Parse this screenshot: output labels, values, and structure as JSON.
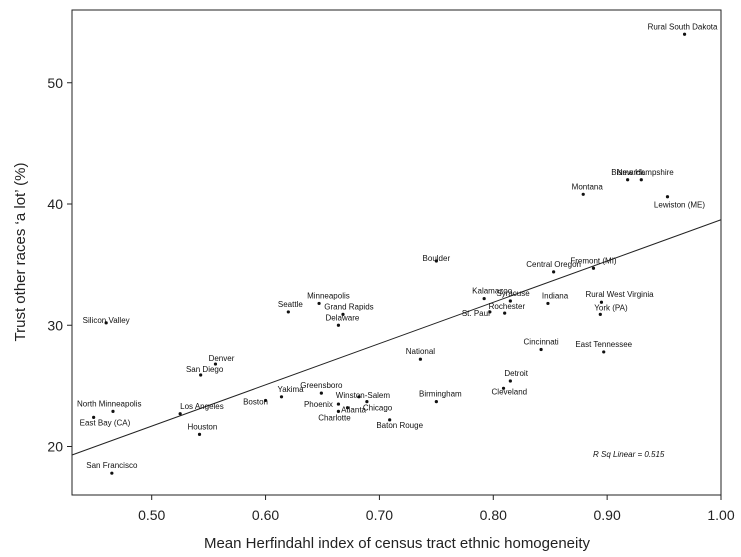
{
  "chart_data": {
    "type": "scatter",
    "xlabel": "Mean Herfindahl index of census tract ethnic homogeneity",
    "ylabel": "Trust other races ‘a lot’ (%)",
    "xlim": [
      0.43,
      1.0
    ],
    "ylim": [
      16.0,
      56.0
    ],
    "x_ticks": [
      "0.50",
      "0.60",
      "0.70",
      "0.80",
      "0.90",
      "1.00"
    ],
    "y_ticks": [
      "20",
      "30",
      "40",
      "50"
    ],
    "fit_line": {
      "x": [
        0.43,
        1.0
      ],
      "y": [
        19.3,
        38.7
      ]
    },
    "annotation": "R Sq Linear = 0.515",
    "points": [
      {
        "label": "Rural South Dakota",
        "x": 0.968,
        "y": 54.0
      },
      {
        "label": "Bismarck",
        "x": 0.918,
        "y": 42.0
      },
      {
        "label": "New Hampshire",
        "x": 0.93,
        "y": 42.0
      },
      {
        "label": "Montana",
        "x": 0.879,
        "y": 40.8
      },
      {
        "label": "Lewiston (ME)",
        "x": 0.953,
        "y": 40.6
      },
      {
        "label": "Fremont (MI)",
        "x": 0.888,
        "y": 34.7
      },
      {
        "label": "Central Oregon",
        "x": 0.853,
        "y": 34.4
      },
      {
        "label": "Boulder",
        "x": 0.75,
        "y": 35.3
      },
      {
        "label": "Kalamazoo",
        "x": 0.792,
        "y": 32.2
      },
      {
        "label": "Syracuse",
        "x": 0.815,
        "y": 32.0
      },
      {
        "label": "Indiana",
        "x": 0.848,
        "y": 31.8
      },
      {
        "label": "Rural West Virginia",
        "x": 0.895,
        "y": 31.9
      },
      {
        "label": "St. Paul",
        "x": 0.797,
        "y": 31.1
      },
      {
        "label": "Rochester",
        "x": 0.81,
        "y": 31.0
      },
      {
        "label": "York (PA)",
        "x": 0.894,
        "y": 30.9
      },
      {
        "label": "Minneapolis",
        "x": 0.647,
        "y": 31.8
      },
      {
        "label": "Seattle",
        "x": 0.62,
        "y": 31.1
      },
      {
        "label": "Grand Rapids",
        "x": 0.668,
        "y": 30.9
      },
      {
        "label": "Delaware",
        "x": 0.664,
        "y": 30.0
      },
      {
        "label": "Silicon Valley",
        "x": 0.46,
        "y": 30.2
      },
      {
        "label": "Cincinnati",
        "x": 0.842,
        "y": 28.0
      },
      {
        "label": "East Tennessee",
        "x": 0.897,
        "y": 27.8
      },
      {
        "label": "National",
        "x": 0.736,
        "y": 27.2
      },
      {
        "label": "Denver",
        "x": 0.556,
        "y": 26.8
      },
      {
        "label": "San Diego",
        "x": 0.543,
        "y": 25.9
      },
      {
        "label": "Detroit",
        "x": 0.815,
        "y": 25.4
      },
      {
        "label": "Cleveland",
        "x": 0.809,
        "y": 24.8
      },
      {
        "label": "Yakima",
        "x": 0.614,
        "y": 24.1
      },
      {
        "label": "Greensboro",
        "x": 0.649,
        "y": 24.4
      },
      {
        "label": "Winston-Salem",
        "x": 0.682,
        "y": 24.1
      },
      {
        "label": "Birmingham",
        "x": 0.75,
        "y": 23.7
      },
      {
        "label": "Boston",
        "x": 0.6,
        "y": 23.8
      },
      {
        "label": "Phoenix",
        "x": 0.664,
        "y": 23.5
      },
      {
        "label": "Chicago",
        "x": 0.689,
        "y": 23.7
      },
      {
        "label": "Atlanta",
        "x": 0.672,
        "y": 23.2
      },
      {
        "label": "Charlotte",
        "x": 0.664,
        "y": 22.9
      },
      {
        "label": "Baton Rouge",
        "x": 0.709,
        "y": 22.2
      },
      {
        "label": "Los Angeles",
        "x": 0.525,
        "y": 22.7
      },
      {
        "label": "North Minneapolis",
        "x": 0.466,
        "y": 22.9
      },
      {
        "label": "East Bay (CA)",
        "x": 0.449,
        "y": 22.4
      },
      {
        "label": "Houston",
        "x": 0.542,
        "y": 21.0
      },
      {
        "label": "San Francisco",
        "x": 0.465,
        "y": 17.8
      }
    ]
  }
}
